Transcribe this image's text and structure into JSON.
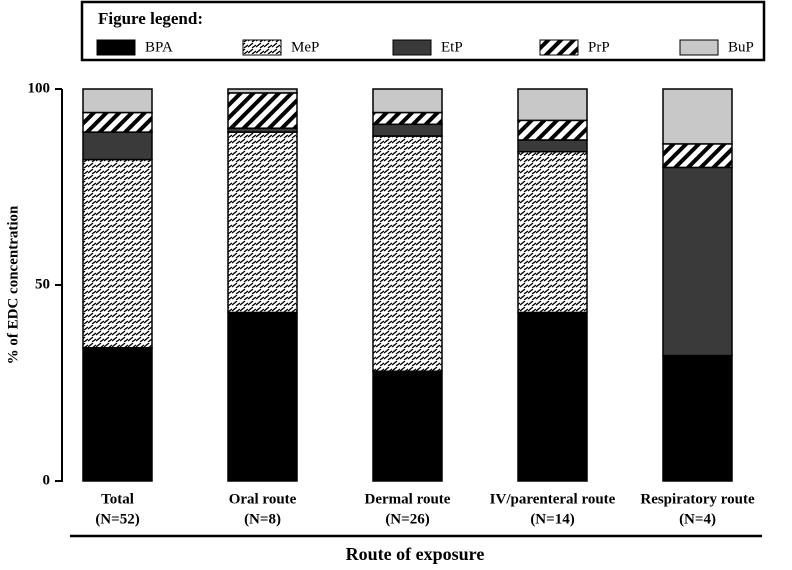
{
  "chart_data": {
    "type": "stacked-bar",
    "legend_title": "Figure legend:",
    "categories": [
      [
        "Total",
        "(N=52)"
      ],
      [
        "Oral route",
        "(N=8)"
      ],
      [
        "Dermal route",
        "(N=26)"
      ],
      [
        "IV/parenteral route",
        "(N=14)"
      ],
      [
        "Respiratory route",
        "(N=4)"
      ]
    ],
    "series": [
      {
        "name": "BPA",
        "color": "#000000",
        "values": [
          34,
          43,
          28,
          43,
          32
        ]
      },
      {
        "name": "MeP",
        "color": "#000000",
        "pattern": "crosshatch",
        "values": [
          48,
          46,
          60,
          41,
          0
        ]
      },
      {
        "name": "EtP",
        "color": "#3a3a3a",
        "values": [
          7,
          1,
          3,
          3,
          48
        ]
      },
      {
        "name": "PrP",
        "color": "#000000",
        "pattern": "diagonal",
        "values": [
          5,
          9,
          3,
          5,
          6
        ]
      },
      {
        "name": "BuP",
        "color": "#c8c8c8",
        "values": [
          6,
          1,
          6,
          8,
          14
        ]
      }
    ],
    "ylabel": "% of EDC concentration",
    "xlabel": "Route of exposure",
    "ylim": [
      0,
      100
    ],
    "yticks": [
      0,
      50,
      100
    ]
  }
}
